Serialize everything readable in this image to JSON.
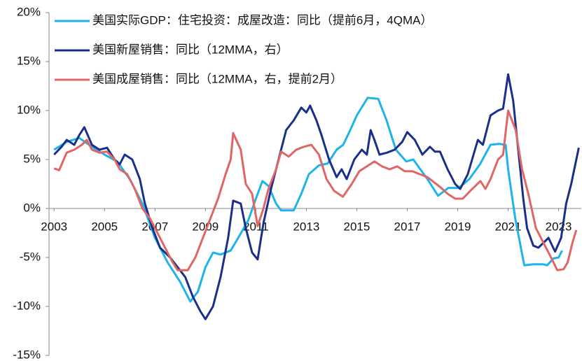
{
  "chart_data": {
    "type": "line",
    "xlim": [
      2002.8,
      2023.9
    ],
    "xticks": [
      2003,
      2005,
      2007,
      2009,
      2011,
      2013,
      2015,
      2017,
      2019,
      2021,
      2023
    ],
    "ylim": [
      -15,
      20
    ],
    "yticks": [
      {
        "value": -15,
        "label": "-15%"
      },
      {
        "value": -10,
        "label": "-10%"
      },
      {
        "value": -5,
        "label": "-5%"
      },
      {
        "value": 0,
        "label": "0%"
      },
      {
        "value": 5,
        "label": "5%"
      },
      {
        "value": 10,
        "label": "10%"
      },
      {
        "value": 15,
        "label": "15%"
      },
      {
        "value": 20,
        "label": "20%"
      }
    ],
    "legend": "upper left",
    "series": [
      {
        "name": "美国实际GDP：住宅投资：成屋改造：同比（提前6月，4QMA）",
        "color": "#1fb3e8",
        "x": [
          2003.0,
          2003.5,
          2004.0,
          2004.5,
          2005.0,
          2005.5,
          2006.0,
          2006.5,
          2007.0,
          2007.5,
          2008.0,
          2008.4,
          2008.7,
          2009.0,
          2009.3,
          2009.6,
          2010.0,
          2010.3,
          2010.7,
          2011.0,
          2011.26,
          2011.5,
          2011.8,
          2012.0,
          2012.5,
          2012.8,
          2013.1,
          2013.5,
          2013.85,
          2014.2,
          2014.46,
          2014.74,
          2015.0,
          2015.43,
          2015.85,
          2016.18,
          2016.55,
          2016.96,
          2017.24,
          2017.8,
          2018.22,
          2018.63,
          2019.05,
          2019.46,
          2019.88,
          2020.3,
          2020.64,
          2020.9,
          2021.0,
          2021.28,
          2021.64,
          2022.0,
          2022.39,
          2022.55,
          2022.8,
          2023.0,
          2023.14
        ],
        "values": [
          6,
          6.8,
          7.2,
          6.3,
          5.5,
          4.8,
          3,
          0.5,
          -3,
          -5.5,
          -7.5,
          -9.5,
          -8.5,
          -6,
          -4.5,
          -4.7,
          -4.3,
          -3,
          -1.2,
          1,
          2.8,
          2.3,
          0.5,
          -0.2,
          -0.2,
          1.5,
          3.5,
          4.4,
          4.6,
          6,
          6.5,
          8,
          9.5,
          11.3,
          11.2,
          9,
          6,
          4.8,
          5,
          3,
          1.3,
          2.1,
          2.1,
          3,
          4.5,
          6.5,
          6.6,
          6.5,
          4,
          -1,
          -5.8,
          -5.7,
          -5.7,
          -5.8,
          -5.1,
          -5,
          -4.3
        ]
      },
      {
        "name": "美国新屋销售：同比（12MMA，右）",
        "color": "#1a2f8a",
        "x": [
          2003.0,
          2003.3,
          2003.5,
          2003.8,
          2004.0,
          2004.2,
          2004.5,
          2004.8,
          2005.1,
          2005.4,
          2005.6,
          2005.8,
          2006.1,
          2006.4,
          2006.6,
          2006.9,
          2007.2,
          2007.6,
          2007.9,
          2008.2,
          2008.5,
          2008.8,
          2009.0,
          2009.3,
          2009.6,
          2009.9,
          2010.1,
          2010.4,
          2010.6,
          2010.85,
          2011.07,
          2011.3,
          2011.6,
          2011.9,
          2012.2,
          2012.5,
          2012.8,
          2013.0,
          2013.15,
          2013.4,
          2013.6,
          2013.9,
          2014.2,
          2014.4,
          2014.6,
          2014.9,
          2015.2,
          2015.4,
          2015.55,
          2015.7,
          2015.9,
          2016.2,
          2016.5,
          2016.8,
          2017.0,
          2017.3,
          2017.6,
          2017.9,
          2018.1,
          2018.3,
          2018.6,
          2018.9,
          2019.1,
          2019.4,
          2019.8,
          2020.0,
          2020.3,
          2020.6,
          2020.8,
          2021.0,
          2021.2,
          2021.4,
          2021.6,
          2021.75,
          2022.0,
          2022.2,
          2022.4,
          2022.6,
          2022.86,
          2023.1,
          2023.3,
          2023.5,
          2023.8
        ],
        "values": [
          5.5,
          6.3,
          7,
          6.5,
          7.5,
          8.3,
          6.5,
          6,
          6.2,
          5,
          4.5,
          5.5,
          5,
          3,
          0.5,
          -2,
          -4,
          -5,
          -6,
          -7,
          -9,
          -10.5,
          -11.3,
          -10,
          -7,
          -3,
          0.8,
          0.5,
          -2,
          -4.5,
          -5.2,
          -1.5,
          2,
          5,
          8,
          9,
          10.3,
          9.8,
          10.5,
          9,
          7.5,
          5,
          3.2,
          4,
          3,
          5,
          6,
          5.5,
          8,
          7,
          5.5,
          5.7,
          6,
          6.8,
          7.8,
          7,
          5.5,
          6.3,
          5.8,
          5.8,
          4,
          2.5,
          2,
          3.5,
          7,
          6.5,
          9.5,
          10,
          10.2,
          13.7,
          11,
          6,
          1,
          -2,
          -3.8,
          -4,
          -3.5,
          -3,
          -4.4,
          -3,
          0.5,
          2.5,
          6.2
        ]
      },
      {
        "name": "美国成屋销售：同比（12MMA，右，提前2月）",
        "color": "#e06666",
        "x": [
          2003.0,
          2003.2,
          2003.5,
          2003.8,
          2004.1,
          2004.3,
          2004.5,
          2004.8,
          2005.1,
          2005.4,
          2005.6,
          2005.9,
          2006.2,
          2006.5,
          2006.8,
          2007.1,
          2007.4,
          2007.7,
          2007.9,
          2008.3,
          2008.6,
          2008.9,
          2009.2,
          2009.5,
          2009.8,
          2010.0,
          2010.1,
          2010.4,
          2010.6,
          2010.85,
          2011.07,
          2011.3,
          2011.5,
          2011.8,
          2012.0,
          2012.3,
          2012.6,
          2012.9,
          2013.2,
          2013.5,
          2013.8,
          2014.1,
          2014.45,
          2014.8,
          2015.1,
          2015.4,
          2015.7,
          2016.0,
          2016.3,
          2016.6,
          2016.9,
          2017.2,
          2017.5,
          2017.8,
          2018.0,
          2018.3,
          2018.6,
          2018.9,
          2019.2,
          2019.5,
          2019.9,
          2020.1,
          2020.3,
          2020.6,
          2020.8,
          2021.0,
          2021.3,
          2021.55,
          2021.8,
          2022.1,
          2022.4,
          2022.7,
          2022.95,
          2023.2,
          2023.36,
          2023.55,
          2023.7
        ],
        "values": [
          4.1,
          3.9,
          5.7,
          6,
          6.5,
          7,
          6,
          5.7,
          5.8,
          5,
          4,
          3.5,
          2,
          0,
          -1,
          -2.5,
          -4,
          -5.5,
          -6.3,
          -6.3,
          -5,
          -3,
          -1,
          1,
          3.5,
          5,
          7.7,
          6,
          2.5,
          1.5,
          -1.8,
          0,
          2,
          4,
          5.8,
          5.3,
          6,
          6.3,
          6.5,
          5.5,
          3,
          1.8,
          1.2,
          2.5,
          3.8,
          4.3,
          4.8,
          4.3,
          4,
          4.3,
          3.8,
          3.8,
          3.5,
          3.2,
          2.8,
          2.2,
          1.5,
          1,
          1,
          1.8,
          2.8,
          2,
          3,
          5,
          5.5,
          10,
          8,
          4,
          1.5,
          -2,
          -3.5,
          -5,
          -6.3,
          -6.2,
          -5.5,
          -3.5,
          -2.2
        ]
      }
    ]
  }
}
